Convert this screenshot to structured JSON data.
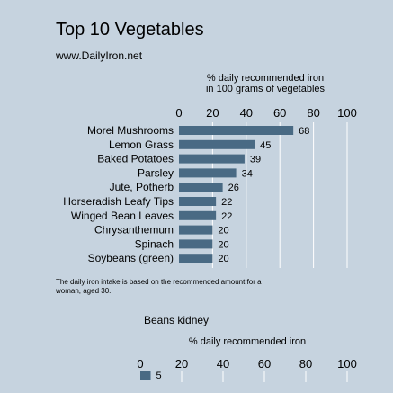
{
  "page": {
    "title": "Top 10 Vegetables",
    "subtitle": "www.DailyIron.net",
    "footnote": "The daily iron intake is based on the recommended amount for a woman, aged 30."
  },
  "colors": {
    "background": "#c6d3df",
    "bar": "#496a84",
    "gridline": "#ffffff"
  },
  "chart_data": [
    {
      "type": "bar",
      "orientation": "horizontal",
      "title": "",
      "xlabel": "% daily recommended iron\nin 100 grams of vegetables",
      "xlim": [
        0,
        100
      ],
      "xticks": [
        0,
        20,
        40,
        60,
        80,
        100
      ],
      "grid": true,
      "categories": [
        "Morel Mushrooms",
        "Lemon Grass",
        "Baked Potatoes",
        "Parsley",
        "Jute, Potherb",
        "Horseradish Leafy Tips",
        "Winged Bean Leaves",
        "Chrysanthemum",
        "Spinach",
        "Soybeans (green)"
      ],
      "values": [
        68,
        45,
        39,
        34,
        26,
        22,
        22,
        20,
        20,
        20
      ]
    },
    {
      "type": "bar",
      "orientation": "horizontal",
      "title": "Beans kidney",
      "xlabel": "% daily recommended iron",
      "xlim": [
        0,
        100
      ],
      "xticks": [
        0,
        20,
        40,
        60,
        80,
        100
      ],
      "grid": true,
      "categories": [
        ""
      ],
      "values": [
        5
      ]
    }
  ]
}
